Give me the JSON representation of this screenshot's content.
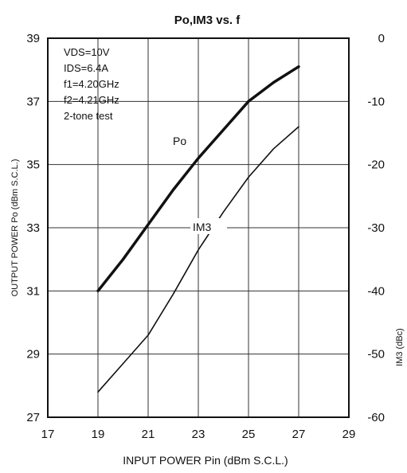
{
  "chart_data": {
    "type": "line",
    "title": "Po,IM3 vs. f",
    "xlabel": "INPUT POWER Pin (dBm S.C.L.)",
    "ylabel_left": "OUTPUT POWER Po (dBm S.C.L.)",
    "ylabel_right": "IM3 (dBc)",
    "xlim": [
      17,
      29
    ],
    "ylim_left": [
      27,
      39
    ],
    "ylim_right": [
      -60,
      0
    ],
    "x_ticks": [
      "17",
      "19",
      "21",
      "23",
      "25",
      "27",
      "29"
    ],
    "y_left_ticks": [
      "27",
      "29",
      "31",
      "33",
      "35",
      "37",
      "39"
    ],
    "y_right_ticks": [
      "-60",
      "-50",
      "-40",
      "-30",
      "-20",
      "-10",
      "0"
    ],
    "grid": true,
    "conditions": [
      "VDS=10V",
      "IDS=6.4A",
      "f1=4.20GHz",
      "f2=4.21GHz",
      "2-tone test"
    ],
    "series": [
      {
        "name": "Po",
        "axis": "left",
        "color": "#111111",
        "x": [
          19,
          20,
          21,
          22,
          23,
          24,
          25,
          26,
          27
        ],
        "y": [
          31.0,
          32.0,
          33.1,
          34.2,
          35.2,
          36.1,
          37.0,
          37.6,
          38.1
        ]
      },
      {
        "name": "IM3",
        "axis": "right",
        "color": "#111111",
        "x": [
          19,
          20,
          21,
          22,
          23,
          24,
          25,
          26,
          27
        ],
        "y": [
          -56,
          -51.5,
          -47,
          -40.5,
          -33.5,
          -27.5,
          -22,
          -17.5,
          -14
        ]
      }
    ]
  }
}
